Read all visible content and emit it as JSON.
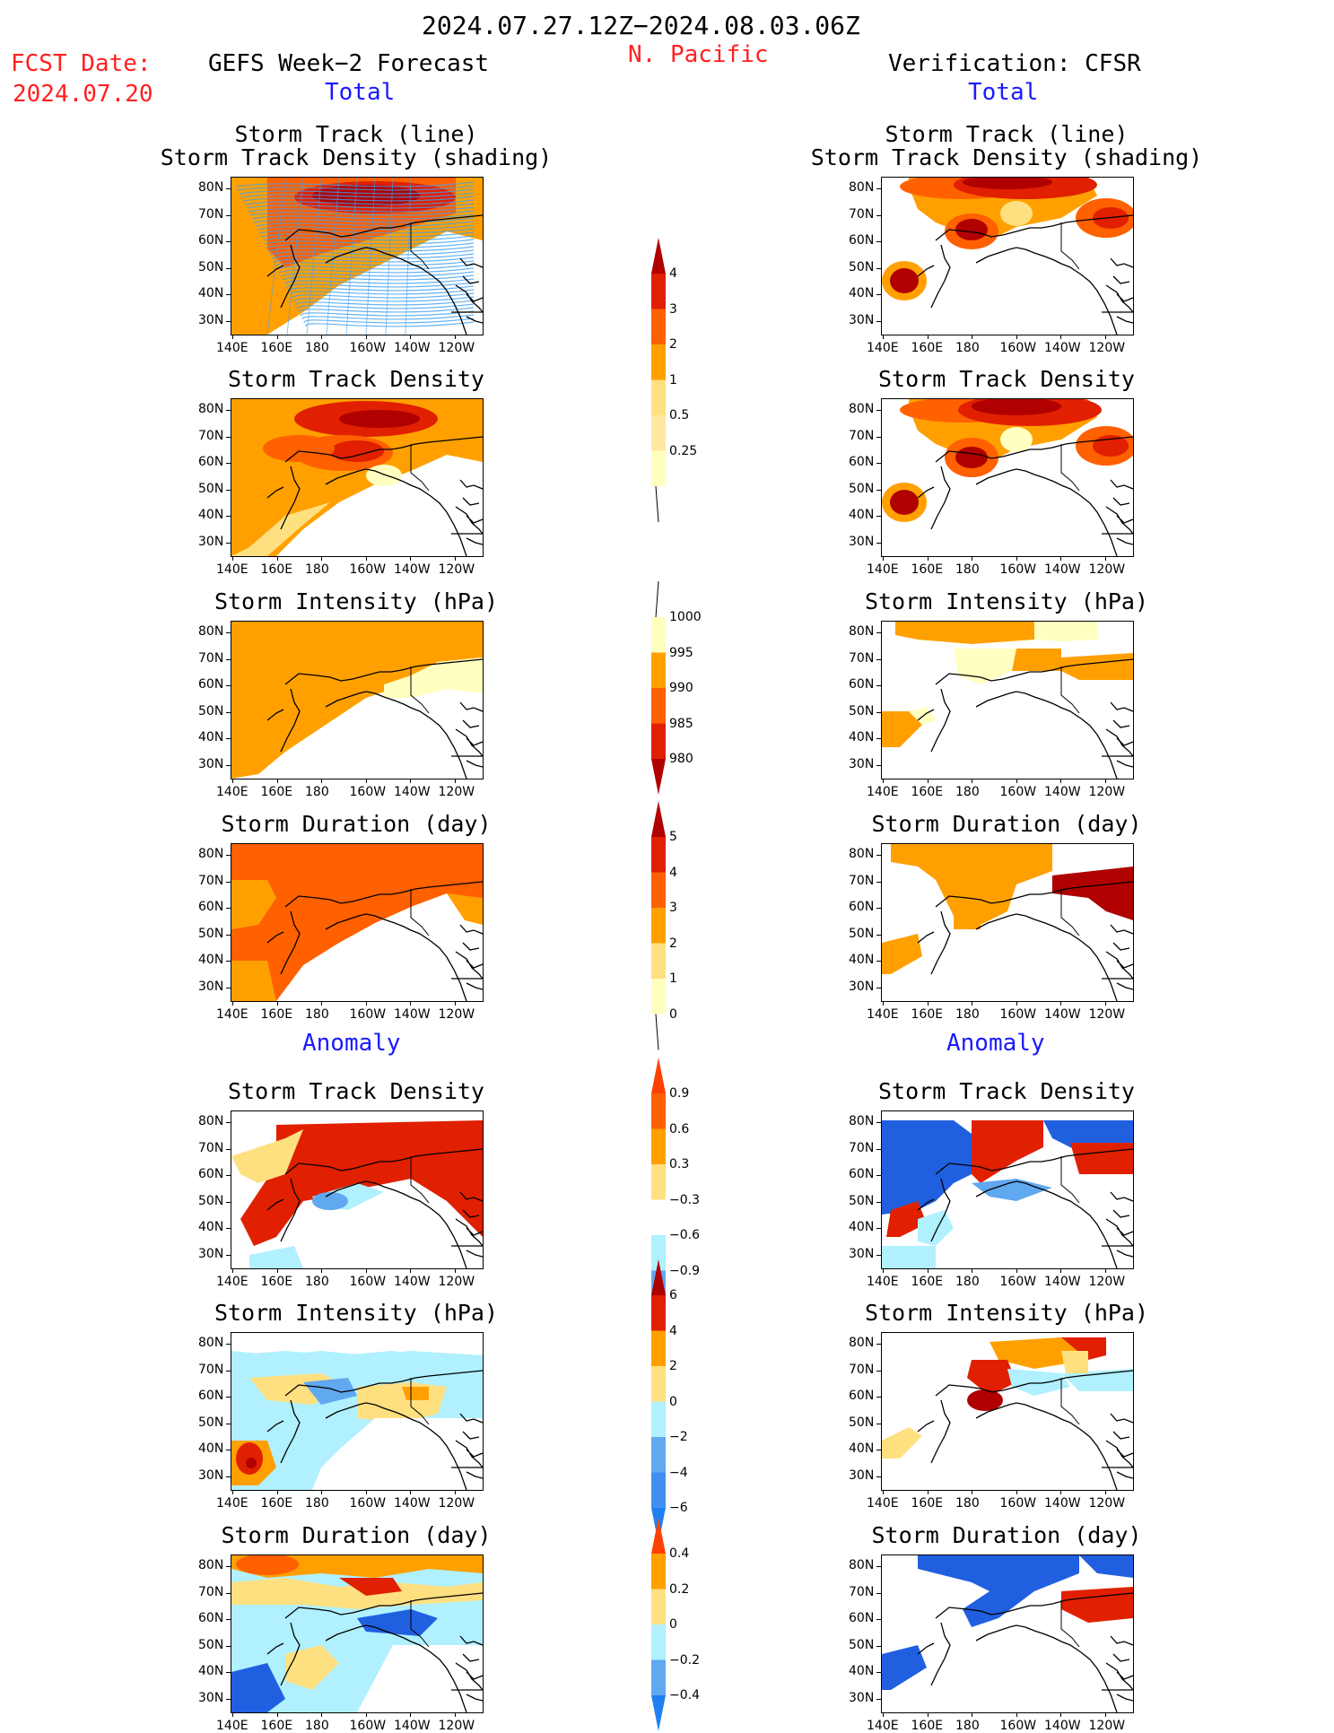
{
  "header": {
    "date_range": "2024.07.27.12Z−2024.08.03.06Z",
    "region": "N. Pacific",
    "fcst_label": "FCST Date:",
    "fcst_date": "2024.07.20",
    "left_title": "GEFS Week−2 Forecast",
    "right_title": "Verification: CFSR",
    "total_label": "Total",
    "anomaly_label": "Anomaly"
  },
  "axes": {
    "lon_ticks": [
      "140E",
      "160E",
      "180",
      "160W",
      "140W",
      "120W"
    ],
    "lat_ticks": [
      "80N",
      "70N",
      "60N",
      "50N",
      "40N",
      "30N"
    ]
  },
  "panels": {
    "track_title1": "Storm Track (line)",
    "track_title2": "Storm Track Density (shading)",
    "density": "Storm Track Density",
    "intensity": "Storm Intensity (hPa)",
    "duration": "Storm Duration (day)"
  },
  "colorbars": {
    "density_total": [
      "4",
      "3",
      "2",
      "1",
      "0.5",
      "0.25"
    ],
    "intensity_total": [
      "1000",
      "995",
      "990",
      "985",
      "980"
    ],
    "duration_total": [
      "5",
      "4",
      "3",
      "2",
      "1",
      "0"
    ],
    "density_anom": [
      "0.9",
      "0.6",
      "0.3",
      "−0.3",
      "−0.6",
      "−0.9"
    ],
    "intensity_anom": [
      "6",
      "4",
      "2",
      "0",
      "−2",
      "−4",
      "−6"
    ],
    "duration_anom": [
      "0.4",
      "0.2",
      "0",
      "−0.2",
      "−0.4"
    ]
  },
  "colors": {
    "pale_yellow": "#ffffc0",
    "yellow": "#ffe080",
    "orange": "#ffa000",
    "dark_orange": "#ff6000",
    "red": "#e02000",
    "dark_red": "#b00000",
    "light_blue": "#b0f0ff",
    "mid_blue": "#60a8f0",
    "blue": "#2060e0",
    "track_line": "#40a0f0"
  }
}
